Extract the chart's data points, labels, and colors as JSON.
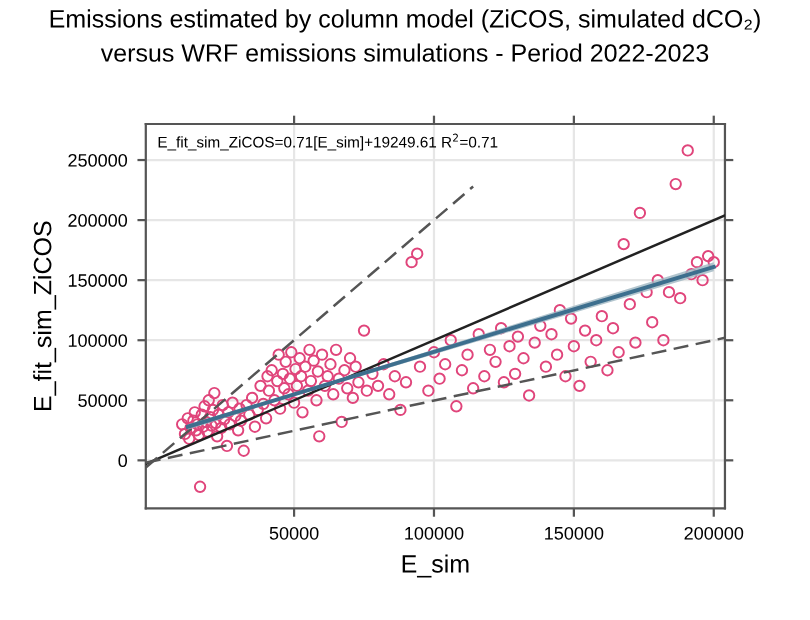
{
  "chart_data": {
    "type": "scatter",
    "title": "Emissions estimated by column model (ZiCOS, simulated dCO₂)\nversus WRF emissions simulations - Period 2022-2023",
    "xlabel": "E_sim",
    "ylabel": "E_fit_sim_ZiCOS",
    "annotations": [
      "E_fit_sim_ZiCOS=0.71[E_sim]+19249.61 R$^{2}$=0.71"
    ],
    "xlim": [
      -3000,
      204000
    ],
    "ylim": [
      -40000,
      280000
    ],
    "xticks": [
      50000,
      100000,
      150000,
      200000
    ],
    "yticks": [
      0,
      50000,
      100000,
      150000,
      200000,
      250000
    ],
    "grid": true,
    "series": [
      {
        "marker": "circle",
        "color": "#e0457b",
        "x": [
          10000,
          11000,
          12000,
          12500,
          13000,
          14000,
          14500,
          15000,
          15500,
          16000,
          16400,
          17000,
          17500,
          18000,
          18500,
          19000,
          19500,
          20000,
          20500,
          21000,
          21500,
          22000,
          22500,
          23000,
          24000,
          24500,
          25000,
          26000,
          26500,
          27000,
          28000,
          29000,
          30000,
          30500,
          31000,
          32000,
          33000,
          34000,
          35000,
          36000,
          37000,
          38000,
          39000,
          40000,
          40500,
          41000,
          42000,
          43000,
          44000,
          44500,
          45000,
          46000,
          46500,
          47000,
          48000,
          48500,
          49000,
          50000,
          50500,
          51000,
          52000,
          52500,
          53000,
          54000,
          55000,
          55500,
          56000,
          57000,
          58000,
          58500,
          59000,
          60000,
          61000,
          62000,
          63000,
          64000,
          65000,
          66000,
          67000,
          68000,
          69000,
          70000,
          71000,
          72000,
          73000,
          75000,
          76000,
          78000,
          80000,
          82000,
          84000,
          86000,
          88000,
          90000,
          92000,
          94000,
          95000,
          98000,
          100000,
          102000,
          104000,
          106000,
          108000,
          110000,
          112000,
          114000,
          116000,
          118000,
          120000,
          122000,
          124000,
          125000,
          127000,
          129000,
          130000,
          132000,
          134000,
          136000,
          138000,
          140000,
          142000,
          144000,
          145000,
          147000,
          149000,
          150000,
          152000,
          154000,
          156000,
          158000,
          160000,
          162000,
          164000,
          166000,
          167800,
          170000,
          172000,
          173600,
          176000,
          178000,
          180000,
          182000,
          184000,
          186400,
          188000,
          190700,
          192000,
          194000,
          196000,
          198000,
          200000
        ],
        "values": [
          30000,
          22000,
          35000,
          18000,
          27000,
          33000,
          40000,
          25000,
          30000,
          21000,
          -22000,
          38000,
          28000,
          45000,
          32000,
          24000,
          50000,
          36000,
          29000,
          42000,
          56000,
          31000,
          20000,
          38000,
          27000,
          46000,
          34000,
          12000,
          40000,
          30000,
          48000,
          37000,
          25000,
          43000,
          33000,
          8000,
          46000,
          38000,
          52000,
          28000,
          42000,
          62000,
          47000,
          35000,
          70000,
          58000,
          75000,
          50000,
          66000,
          88000,
          43000,
          72000,
          60000,
          82000,
          55000,
          68000,
          90000,
          48000,
          76000,
          62000,
          85000,
          70000,
          40000,
          78000,
          58000,
          92000,
          66000,
          83000,
          50000,
          74000,
          20000,
          88000,
          62000,
          70000,
          80000,
          55000,
          92000,
          68000,
          32000,
          75000,
          60000,
          85000,
          52000,
          78000,
          65000,
          108000,
          58000,
          72000,
          62000,
          80000,
          55000,
          70000,
          42000,
          65000,
          165000,
          172000,
          78000,
          58000,
          90000,
          68000,
          80000,
          100000,
          45000,
          75000,
          88000,
          60000,
          105000,
          70000,
          92000,
          82000,
          110000,
          65000,
          95000,
          72000,
          103000,
          85000,
          54000,
          98000,
          112000,
          78000,
          105000,
          88000,
          125000,
          70000,
          118000,
          95000,
          62000,
          108000,
          82000,
          100000,
          120000,
          75000,
          110000,
          90000,
          180000,
          130000,
          98000,
          206000,
          140000,
          115000,
          150000,
          100000,
          140000,
          230000,
          135000,
          258000,
          155000,
          165000,
          150000,
          170000,
          165000
        ]
      },
      {
        "type": "line",
        "color": "#222222",
        "line_style": "solid",
        "x": [
          -3000,
          204000
        ],
        "values": [
          -3000,
          204000
        ]
      },
      {
        "type": "line",
        "color": "#555555",
        "line_style": "dashed",
        "x": [
          -3000,
          114000
        ],
        "values": [
          -6000,
          228000
        ]
      },
      {
        "type": "line",
        "color": "#555555",
        "line_style": "dashed",
        "x": [
          -3000,
          204000
        ],
        "values": [
          -2000,
          102000
        ]
      },
      {
        "type": "line",
        "color": "#3d6f8e",
        "line_style": "solid",
        "x": [
          12000,
          50000,
          200000
        ],
        "values": [
          28000,
          55000,
          161000
        ],
        "lower": [
          25500,
          53500,
          157500
        ],
        "upper": [
          30000,
          56000,
          165000
        ]
      }
    ]
  }
}
